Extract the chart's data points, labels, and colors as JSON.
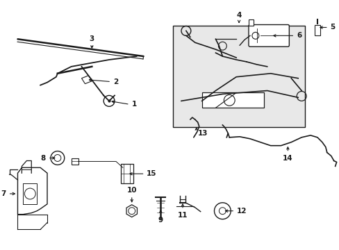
{
  "bg_color": "#ffffff",
  "line_color": "#1a1a1a",
  "box_fill": "#e8e8e8"
}
